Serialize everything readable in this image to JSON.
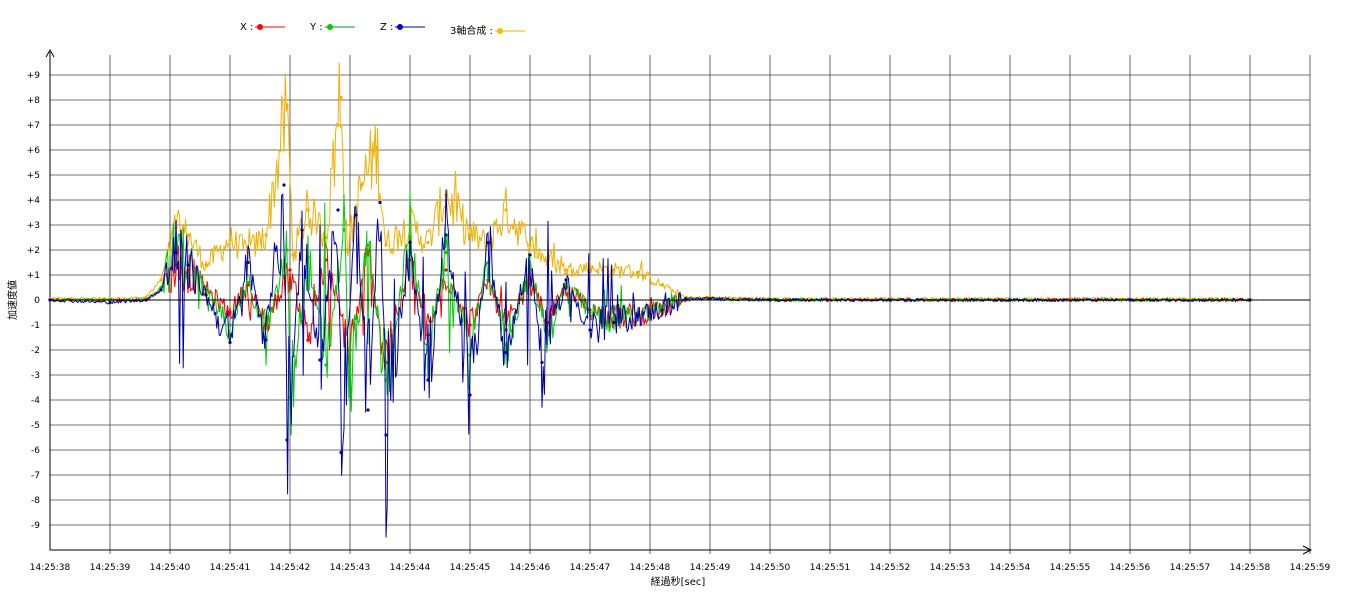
{
  "chart_data": {
    "type": "line",
    "xlabel": "経過秒[sec]",
    "ylabel": "加速度値",
    "x_ticks": [
      "14:25:38",
      "14:25:39",
      "14:25:40",
      "14:25:41",
      "14:25:42",
      "14:25:43",
      "14:25:44",
      "14:25:45",
      "14:25:46",
      "14:25:47",
      "14:25:48",
      "14:25:49",
      "14:25:50",
      "14:25:51",
      "14:25:52",
      "14:25:53",
      "14:25:54",
      "14:25:55",
      "14:25:56",
      "14:25:57",
      "14:25:58",
      "14:25:59"
    ],
    "y_ticks": [
      "+9",
      "+8",
      "+7",
      "+6",
      "+5",
      "+4",
      "+3",
      "+2",
      "+1",
      "0",
      "-1",
      "-2",
      "-3",
      "-4",
      "-5",
      "-6",
      "-7",
      "-8",
      "-9"
    ],
    "ylim": [
      -10,
      10
    ],
    "xlim_seconds_from_first_tick": [
      0,
      21
    ],
    "grid": true,
    "legend_position": "top",
    "series": [
      {
        "name": "X",
        "color": "#ff0000",
        "points": [
          [
            0,
            0
          ],
          [
            1,
            0
          ],
          [
            1.6,
            0
          ],
          [
            1.85,
            0.4
          ],
          [
            2.1,
            1.4
          ],
          [
            2.3,
            1.2
          ],
          [
            2.6,
            0.4
          ],
          [
            3.0,
            -0.5
          ],
          [
            3.3,
            0.6
          ],
          [
            3.6,
            -1.0
          ],
          [
            4.0,
            1.2
          ],
          [
            4.3,
            -1.6
          ],
          [
            4.6,
            1.6
          ],
          [
            5.0,
            -2.0
          ],
          [
            5.3,
            1.8
          ],
          [
            5.6,
            -2.5
          ],
          [
            6.0,
            1.6
          ],
          [
            6.3,
            -1.4
          ],
          [
            6.6,
            1.2
          ],
          [
            7.0,
            -1.0
          ],
          [
            7.3,
            0.8
          ],
          [
            7.6,
            -1.2
          ],
          [
            8.0,
            0.8
          ],
          [
            8.3,
            -0.9
          ],
          [
            8.6,
            0.5
          ],
          [
            9.0,
            -0.4
          ],
          [
            9.4,
            -0.7
          ],
          [
            9.8,
            -0.6
          ],
          [
            10.2,
            -0.4
          ],
          [
            10.6,
            0
          ],
          [
            11,
            0.05
          ],
          [
            12,
            0
          ],
          [
            14,
            0
          ],
          [
            16,
            0
          ],
          [
            18,
            0
          ],
          [
            20,
            0
          ]
        ]
      },
      {
        "name": "Y",
        "color": "#00cc00",
        "points": [
          [
            0,
            0
          ],
          [
            1,
            0
          ],
          [
            1.6,
            0
          ],
          [
            1.85,
            0.5
          ],
          [
            2.1,
            2.0
          ],
          [
            2.3,
            1.5
          ],
          [
            2.6,
            0.3
          ],
          [
            3.0,
            -1.0
          ],
          [
            3.3,
            0.7
          ],
          [
            3.6,
            -1.5
          ],
          [
            3.95,
            2.0
          ],
          [
            4.0,
            -3.9
          ],
          [
            4.3,
            1.7
          ],
          [
            4.6,
            -2.6
          ],
          [
            4.9,
            2.8
          ],
          [
            5.0,
            -3.5
          ],
          [
            5.3,
            2.2
          ],
          [
            5.6,
            -3.2
          ],
          [
            6.0,
            2.5
          ],
          [
            6.3,
            -2.0
          ],
          [
            6.6,
            1.9
          ],
          [
            7.0,
            -2.2
          ],
          [
            7.3,
            1.5
          ],
          [
            7.6,
            -1.8
          ],
          [
            8.0,
            1.2
          ],
          [
            8.3,
            -1.4
          ],
          [
            8.6,
            0.6
          ],
          [
            9.0,
            -0.5
          ],
          [
            9.4,
            -0.8
          ],
          [
            9.8,
            -0.5
          ],
          [
            10.2,
            -0.3
          ],
          [
            10.6,
            0.05
          ],
          [
            11,
            0.05
          ],
          [
            12,
            0
          ],
          [
            14,
            0
          ],
          [
            16,
            0
          ],
          [
            18,
            0
          ],
          [
            20,
            0
          ]
        ]
      },
      {
        "name": "Z",
        "color": "#0000aa",
        "points": [
          [
            0,
            0
          ],
          [
            1,
            -0.1
          ],
          [
            1.6,
            0
          ],
          [
            1.85,
            0.4
          ],
          [
            2.1,
            1.9
          ],
          [
            2.3,
            1.4
          ],
          [
            2.6,
            0.2
          ],
          [
            3.0,
            -1.7
          ],
          [
            3.3,
            1.5
          ],
          [
            3.6,
            -1.6
          ],
          [
            3.9,
            4.6
          ],
          [
            3.95,
            -5.6
          ],
          [
            4.2,
            2.8
          ],
          [
            4.5,
            -2.4
          ],
          [
            4.8,
            3.6
          ],
          [
            4.85,
            -6.1
          ],
          [
            5.1,
            3.4
          ],
          [
            5.3,
            -4.4
          ],
          [
            5.5,
            3.9
          ],
          [
            5.6,
            -5.4
          ],
          [
            6.0,
            2.3
          ],
          [
            6.3,
            -3.2
          ],
          [
            6.6,
            2.6
          ],
          [
            7.0,
            -3.8
          ],
          [
            7.3,
            2.3
          ],
          [
            7.6,
            -2.1
          ],
          [
            8.0,
            1.8
          ],
          [
            8.2,
            -2.5
          ],
          [
            8.6,
            0.8
          ],
          [
            9.0,
            -1.2
          ],
          [
            9.4,
            -0.9
          ],
          [
            9.8,
            -0.6
          ],
          [
            10.2,
            -0.4
          ],
          [
            10.6,
            0.05
          ],
          [
            11,
            0.05
          ],
          [
            12,
            0
          ],
          [
            14,
            0
          ],
          [
            16,
            0
          ],
          [
            18,
            0
          ],
          [
            20,
            0
          ]
        ]
      },
      {
        "name": "3軸合成",
        "color": "#f0b000",
        "points": [
          [
            0,
            0.05
          ],
          [
            1,
            0.05
          ],
          [
            1.6,
            0.1
          ],
          [
            1.85,
            0.8
          ],
          [
            2.1,
            2.9
          ],
          [
            2.3,
            2.6
          ],
          [
            2.6,
            1.4
          ],
          [
            3.0,
            2.4
          ],
          [
            3.3,
            1.9
          ],
          [
            3.6,
            2.6
          ],
          [
            3.95,
            7.8
          ],
          [
            4.05,
            1.8
          ],
          [
            4.3,
            3.6
          ],
          [
            4.6,
            2.5
          ],
          [
            4.85,
            8.1
          ],
          [
            4.95,
            2.0
          ],
          [
            5.2,
            4.6
          ],
          [
            5.45,
            6.1
          ],
          [
            5.6,
            2.2
          ],
          [
            6.0,
            3.0
          ],
          [
            6.3,
            2.3
          ],
          [
            6.6,
            4.2
          ],
          [
            7.0,
            2.6
          ],
          [
            7.3,
            2.2
          ],
          [
            7.6,
            3.6
          ],
          [
            8.0,
            2.2
          ],
          [
            8.3,
            1.6
          ],
          [
            8.6,
            1.2
          ],
          [
            9.0,
            1.3
          ],
          [
            9.4,
            1.2
          ],
          [
            9.8,
            1.1
          ],
          [
            10.2,
            0.6
          ],
          [
            10.6,
            0.1
          ],
          [
            11,
            0.1
          ],
          [
            12,
            0.05
          ],
          [
            14,
            0.05
          ],
          [
            16,
            0.05
          ],
          [
            18,
            0.05
          ],
          [
            20,
            0.05
          ]
        ]
      }
    ]
  },
  "legend": {
    "x_label": "X :",
    "y_label": "Y :",
    "z_label": "Z :",
    "sum_label": "3軸合成 :"
  }
}
